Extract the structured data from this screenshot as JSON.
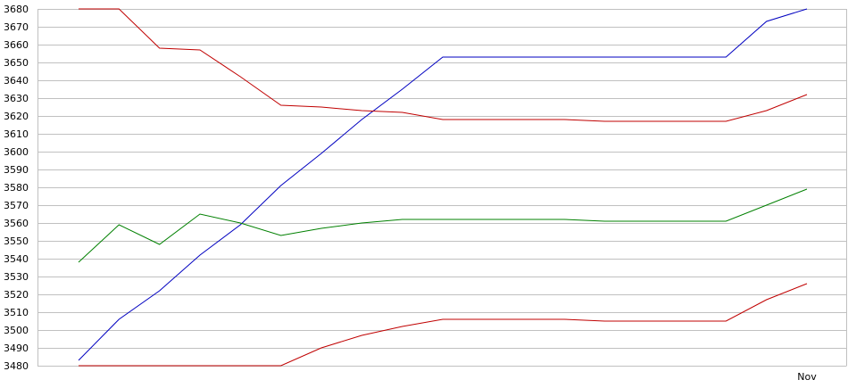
{
  "chart_data": {
    "type": "line",
    "title": "",
    "xlabel": "",
    "ylabel": "",
    "ylim": [
      3480,
      3680
    ],
    "yticks": [
      3480,
      3490,
      3500,
      3510,
      3520,
      3530,
      3540,
      3550,
      3560,
      3570,
      3580,
      3590,
      3600,
      3610,
      3620,
      3630,
      3640,
      3650,
      3660,
      3670,
      3680
    ],
    "xlim": [
      0,
      18
    ],
    "xtick_labels": [
      {
        "x": 18,
        "label": "Nov"
      }
    ],
    "grid": true,
    "legend": "none",
    "series": [
      {
        "color": "#0000c0",
        "x": [
          0,
          1,
          2,
          3,
          4,
          5,
          6,
          7,
          8,
          9,
          10,
          11,
          12,
          13,
          14,
          15,
          16,
          17,
          18
        ],
        "y": [
          3483,
          3506,
          3522,
          3542,
          3559,
          3581,
          3599,
          3618,
          3635,
          3653,
          3653,
          3653,
          3653,
          3653,
          3653,
          3653,
          3653,
          3673,
          3680
        ]
      },
      {
        "color": "#c00000",
        "x": [
          0,
          1,
          2,
          3,
          4,
          5,
          6,
          7,
          8,
          9,
          10,
          11,
          12,
          13,
          14,
          15,
          16,
          17,
          18
        ],
        "y": [
          3680,
          3680,
          3658,
          3657,
          3642,
          3626,
          3625,
          3623,
          3622,
          3618,
          3618,
          3618,
          3618,
          3617,
          3617,
          3617,
          3617,
          3623,
          3632
        ]
      },
      {
        "color": "#008000",
        "x": [
          0,
          1,
          2,
          3,
          4,
          5,
          6,
          7,
          8,
          9,
          10,
          11,
          12,
          13,
          14,
          15,
          16,
          17,
          18
        ],
        "y": [
          3538,
          3559,
          3548,
          3565,
          3560,
          3553,
          3557,
          3560,
          3562,
          3562,
          3562,
          3562,
          3562,
          3561,
          3561,
          3561,
          3561,
          3570,
          3579
        ]
      },
      {
        "color": "#c00000",
        "x": [
          0,
          1,
          2,
          3,
          4,
          5,
          6,
          7,
          8,
          9,
          10,
          11,
          12,
          13,
          14,
          15,
          16,
          17,
          18
        ],
        "y": [
          3480,
          3480,
          3480,
          3480,
          3480,
          3480,
          3490,
          3497,
          3502,
          3506,
          3506,
          3506,
          3506,
          3505,
          3505,
          3505,
          3505,
          3517,
          3526
        ]
      }
    ]
  }
}
